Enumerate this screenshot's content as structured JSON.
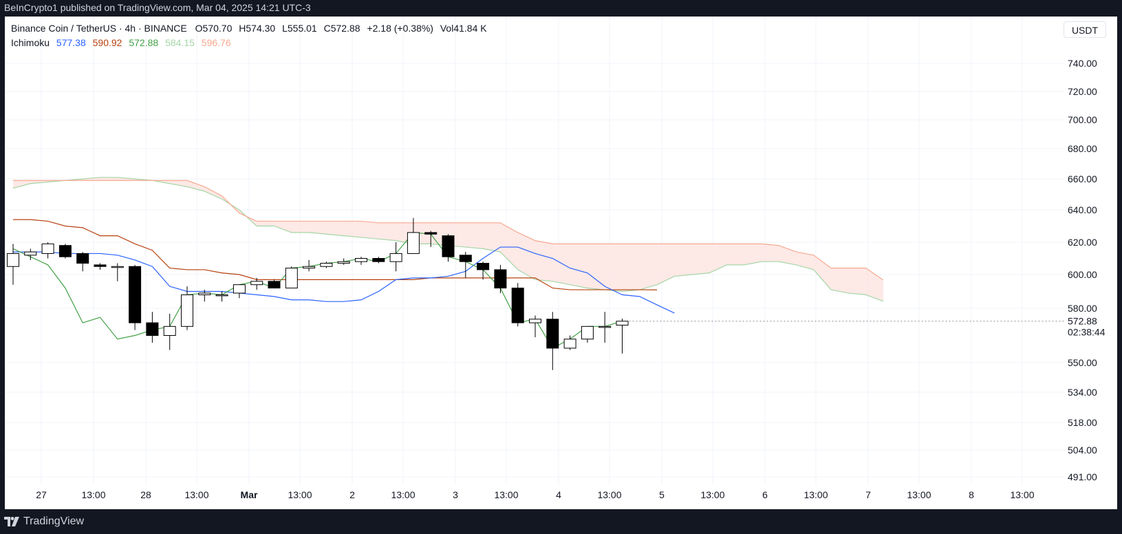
{
  "header": {
    "published_text": "BeInCrypto1 published on TradingView.com, Mar 04, 2025 14:21 UTC-3"
  },
  "legend": {
    "symbol": "Binance Coin / TetherUS · 4h · BINANCE",
    "open_label": "O",
    "open": "570.70",
    "high_label": "H",
    "high": "574.30",
    "low_label": "L",
    "low": "555.01",
    "close_label": "C",
    "close": "572.88",
    "change": "+2.18 (+0.38%)",
    "volume_label": "Vol",
    "volume": "41.84 K",
    "indicator_name": "Ichimoku",
    "indicator_values": [
      "577.38",
      "590.92",
      "572.88",
      "584.15",
      "596.76"
    ]
  },
  "currency_button": "USDT",
  "footer": {
    "brand": "TradingView"
  },
  "colors": {
    "conversion_line": "#2962ff",
    "base_line": "#b7410e",
    "lagging_span": "#43a047",
    "leading_span_a": "#a5d6a7",
    "leading_span_b": "#f7a88f",
    "cloud_fill": "#fde5e2",
    "up_candle_body": "#ffffff",
    "down_candle_body": "#000000",
    "candle_border": "#000000",
    "background": "#ffffff",
    "grid": "#f0f3fa"
  },
  "chart_data": {
    "type": "candlestick",
    "timeframe": "4h",
    "y_axis": {
      "ticks": [
        "740.00",
        "720.00",
        "700.00",
        "680.00",
        "660.00",
        "640.00",
        "620.00",
        "600.00",
        "580.00",
        "550.00",
        "534.00",
        "518.00",
        "504.00",
        "491.00"
      ],
      "scale": "log",
      "last_price_label": "572.88",
      "countdown_label": "02:38:44"
    },
    "x_axis": {
      "ticks": [
        "27",
        "13:00",
        "28",
        "13:00",
        "Mar",
        "13:00",
        "2",
        "13:00",
        "3",
        "13:00",
        "4",
        "13:00",
        "5",
        "13:00",
        "6",
        "13:00",
        "7",
        "13:00",
        "8",
        "13:00"
      ]
    },
    "candles": [
      {
        "o": 605,
        "h": 619,
        "l": 594,
        "c": 613
      },
      {
        "o": 612,
        "h": 616,
        "l": 609,
        "c": 614
      },
      {
        "o": 613,
        "h": 620,
        "l": 610,
        "c": 619
      },
      {
        "o": 618,
        "h": 619,
        "l": 610,
        "c": 611
      },
      {
        "o": 613,
        "h": 614,
        "l": 602,
        "c": 607
      },
      {
        "o": 606,
        "h": 607,
        "l": 603,
        "c": 605
      },
      {
        "o": 605,
        "h": 607,
        "l": 596,
        "c": 605
      },
      {
        "o": 605,
        "h": 606,
        "l": 568,
        "c": 572
      },
      {
        "o": 572,
        "h": 578,
        "l": 561,
        "c": 565
      },
      {
        "o": 565,
        "h": 577,
        "l": 557,
        "c": 570
      },
      {
        "o": 570,
        "h": 593,
        "l": 568,
        "c": 588
      },
      {
        "o": 588,
        "h": 591,
        "l": 584,
        "c": 589
      },
      {
        "o": 588,
        "h": 590,
        "l": 584,
        "c": 588
      },
      {
        "o": 589,
        "h": 594,
        "l": 586,
        "c": 594
      },
      {
        "o": 594,
        "h": 598,
        "l": 591,
        "c": 596
      },
      {
        "o": 596,
        "h": 597,
        "l": 592,
        "c": 592
      },
      {
        "o": 592,
        "h": 605,
        "l": 592,
        "c": 604
      },
      {
        "o": 604,
        "h": 609,
        "l": 602,
        "c": 605
      },
      {
        "o": 605,
        "h": 608,
        "l": 604,
        "c": 607
      },
      {
        "o": 607,
        "h": 610,
        "l": 606,
        "c": 608
      },
      {
        "o": 608,
        "h": 611,
        "l": 606,
        "c": 610
      },
      {
        "o": 610,
        "h": 611,
        "l": 607,
        "c": 608
      },
      {
        "o": 608,
        "h": 620,
        "l": 602,
        "c": 613
      },
      {
        "o": 613,
        "h": 635,
        "l": 613,
        "c": 626
      },
      {
        "o": 626,
        "h": 627,
        "l": 617,
        "c": 625
      },
      {
        "o": 624,
        "h": 625,
        "l": 608,
        "c": 611
      },
      {
        "o": 612,
        "h": 614,
        "l": 598,
        "c": 608
      },
      {
        "o": 607,
        "h": 608,
        "l": 597,
        "c": 603
      },
      {
        "o": 603,
        "h": 606,
        "l": 589,
        "c": 592
      },
      {
        "o": 592,
        "h": 595,
        "l": 570,
        "c": 572
      },
      {
        "o": 572,
        "h": 576,
        "l": 564,
        "c": 574
      },
      {
        "o": 574,
        "h": 578,
        "l": 546,
        "c": 558
      },
      {
        "o": 558,
        "h": 565,
        "l": 557,
        "c": 563
      },
      {
        "o": 563,
        "h": 570,
        "l": 561,
        "c": 570
      },
      {
        "o": 570,
        "h": 578,
        "l": 561,
        "c": 570
      },
      {
        "o": 570.7,
        "h": 574.3,
        "l": 555.01,
        "c": 572.88
      }
    ],
    "ichimoku": {
      "conversion_line": [
        614,
        614,
        614,
        613,
        613,
        613,
        612,
        609,
        605,
        593,
        590,
        590,
        590,
        589,
        588,
        587,
        585,
        585,
        584,
        584,
        585,
        590,
        597,
        598,
        598,
        599,
        602,
        610,
        617,
        617,
        613,
        610,
        604,
        601,
        593,
        588,
        587,
        582,
        577.38
      ],
      "base_line": [
        634,
        634,
        633,
        630,
        629,
        624,
        624,
        619,
        615,
        604,
        603,
        603,
        601,
        600,
        597,
        597,
        597,
        597,
        597,
        597,
        597,
        597,
        597,
        597,
        598,
        598,
        598,
        598,
        598,
        598,
        598,
        592,
        591,
        591,
        591,
        591,
        591,
        590.92
      ],
      "lagging_span": [
        616,
        611,
        606,
        592,
        572,
        575,
        563,
        565,
        568,
        570,
        588,
        589,
        588,
        594,
        596,
        592,
        604,
        605,
        607,
        608,
        610,
        608,
        613,
        626,
        625,
        611,
        608,
        603,
        592,
        572,
        574,
        558,
        563,
        570,
        570,
        572.88
      ],
      "leading_span_a": [
        654,
        657,
        658,
        659,
        660,
        661,
        661,
        660,
        659,
        657,
        655,
        652,
        647,
        640,
        630,
        630,
        626,
        626,
        625,
        624,
        623,
        622,
        621,
        619,
        619,
        618,
        617,
        616,
        614,
        603,
        597,
        596,
        594,
        592,
        591,
        590,
        591,
        594,
        599,
        600,
        601,
        606,
        606,
        608,
        608,
        606,
        603,
        591,
        589,
        588,
        584.15
      ],
      "leading_span_b": [
        659,
        659,
        659,
        659,
        659,
        659,
        659,
        659,
        659,
        659,
        659,
        655,
        649,
        638,
        633,
        633,
        633,
        633,
        633,
        633,
        633,
        632,
        632,
        632,
        632,
        632,
        632,
        632,
        632,
        626,
        621,
        619,
        619,
        619,
        619,
        619,
        619,
        619,
        619,
        619,
        619,
        619,
        619,
        619,
        618,
        614,
        612,
        604,
        604,
        604,
        596.76
      ]
    }
  }
}
